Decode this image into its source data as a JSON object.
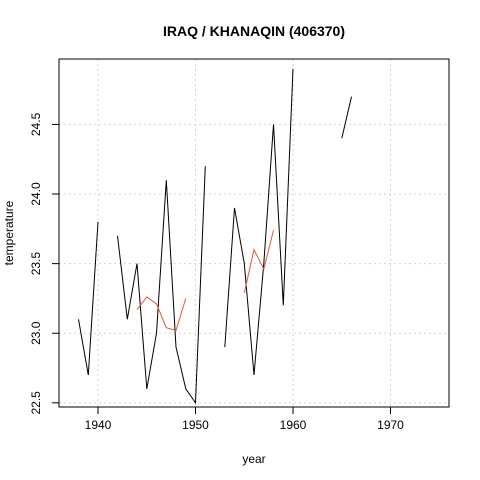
{
  "chart_data": {
    "type": "line",
    "title": "IRAQ / KHANAQIN (406370)",
    "xlabel": "year",
    "ylabel": "temperature",
    "xlim": [
      1936,
      1976
    ],
    "ylim": [
      22.47,
      24.97
    ],
    "xticks": [
      1940,
      1950,
      1960,
      1970
    ],
    "yticks": [
      22.5,
      23.0,
      23.5,
      24.0,
      24.5
    ],
    "ytick_labels": [
      "22.5",
      "23.0",
      "23.5",
      "24.0",
      "24.5"
    ],
    "grid": true,
    "series": [
      {
        "color": "#000000",
        "x": [
          1938,
          1939,
          1940,
          1941,
          1942,
          1943,
          1944,
          1945,
          1946,
          1947,
          1948,
          1949,
          1950,
          1951,
          1952,
          1953,
          1954,
          1955,
          1956,
          1957,
          1958,
          1959,
          1960,
          1961,
          1962,
          1963,
          1964,
          1965,
          1966
        ],
        "y": [
          23.1,
          22.7,
          23.8,
          null,
          23.7,
          23.1,
          23.5,
          22.6,
          23.0,
          24.1,
          22.9,
          22.6,
          22.5,
          24.2,
          null,
          22.9,
          23.9,
          23.5,
          22.7,
          23.5,
          24.5,
          23.2,
          24.9,
          null,
          null,
          null,
          null,
          24.4,
          24.7
        ]
      },
      {
        "color": "#e8553a",
        "x": [
          1944,
          1945,
          1946,
          1947,
          1948,
          1949,
          1950,
          1951,
          1952,
          1953,
          1954,
          1955,
          1956,
          1957,
          1958
        ],
        "y": [
          23.17,
          23.26,
          23.21,
          23.04,
          23.02,
          23.25,
          null,
          null,
          null,
          null,
          null,
          23.29,
          23.6,
          23.46,
          23.74
        ]
      }
    ]
  }
}
